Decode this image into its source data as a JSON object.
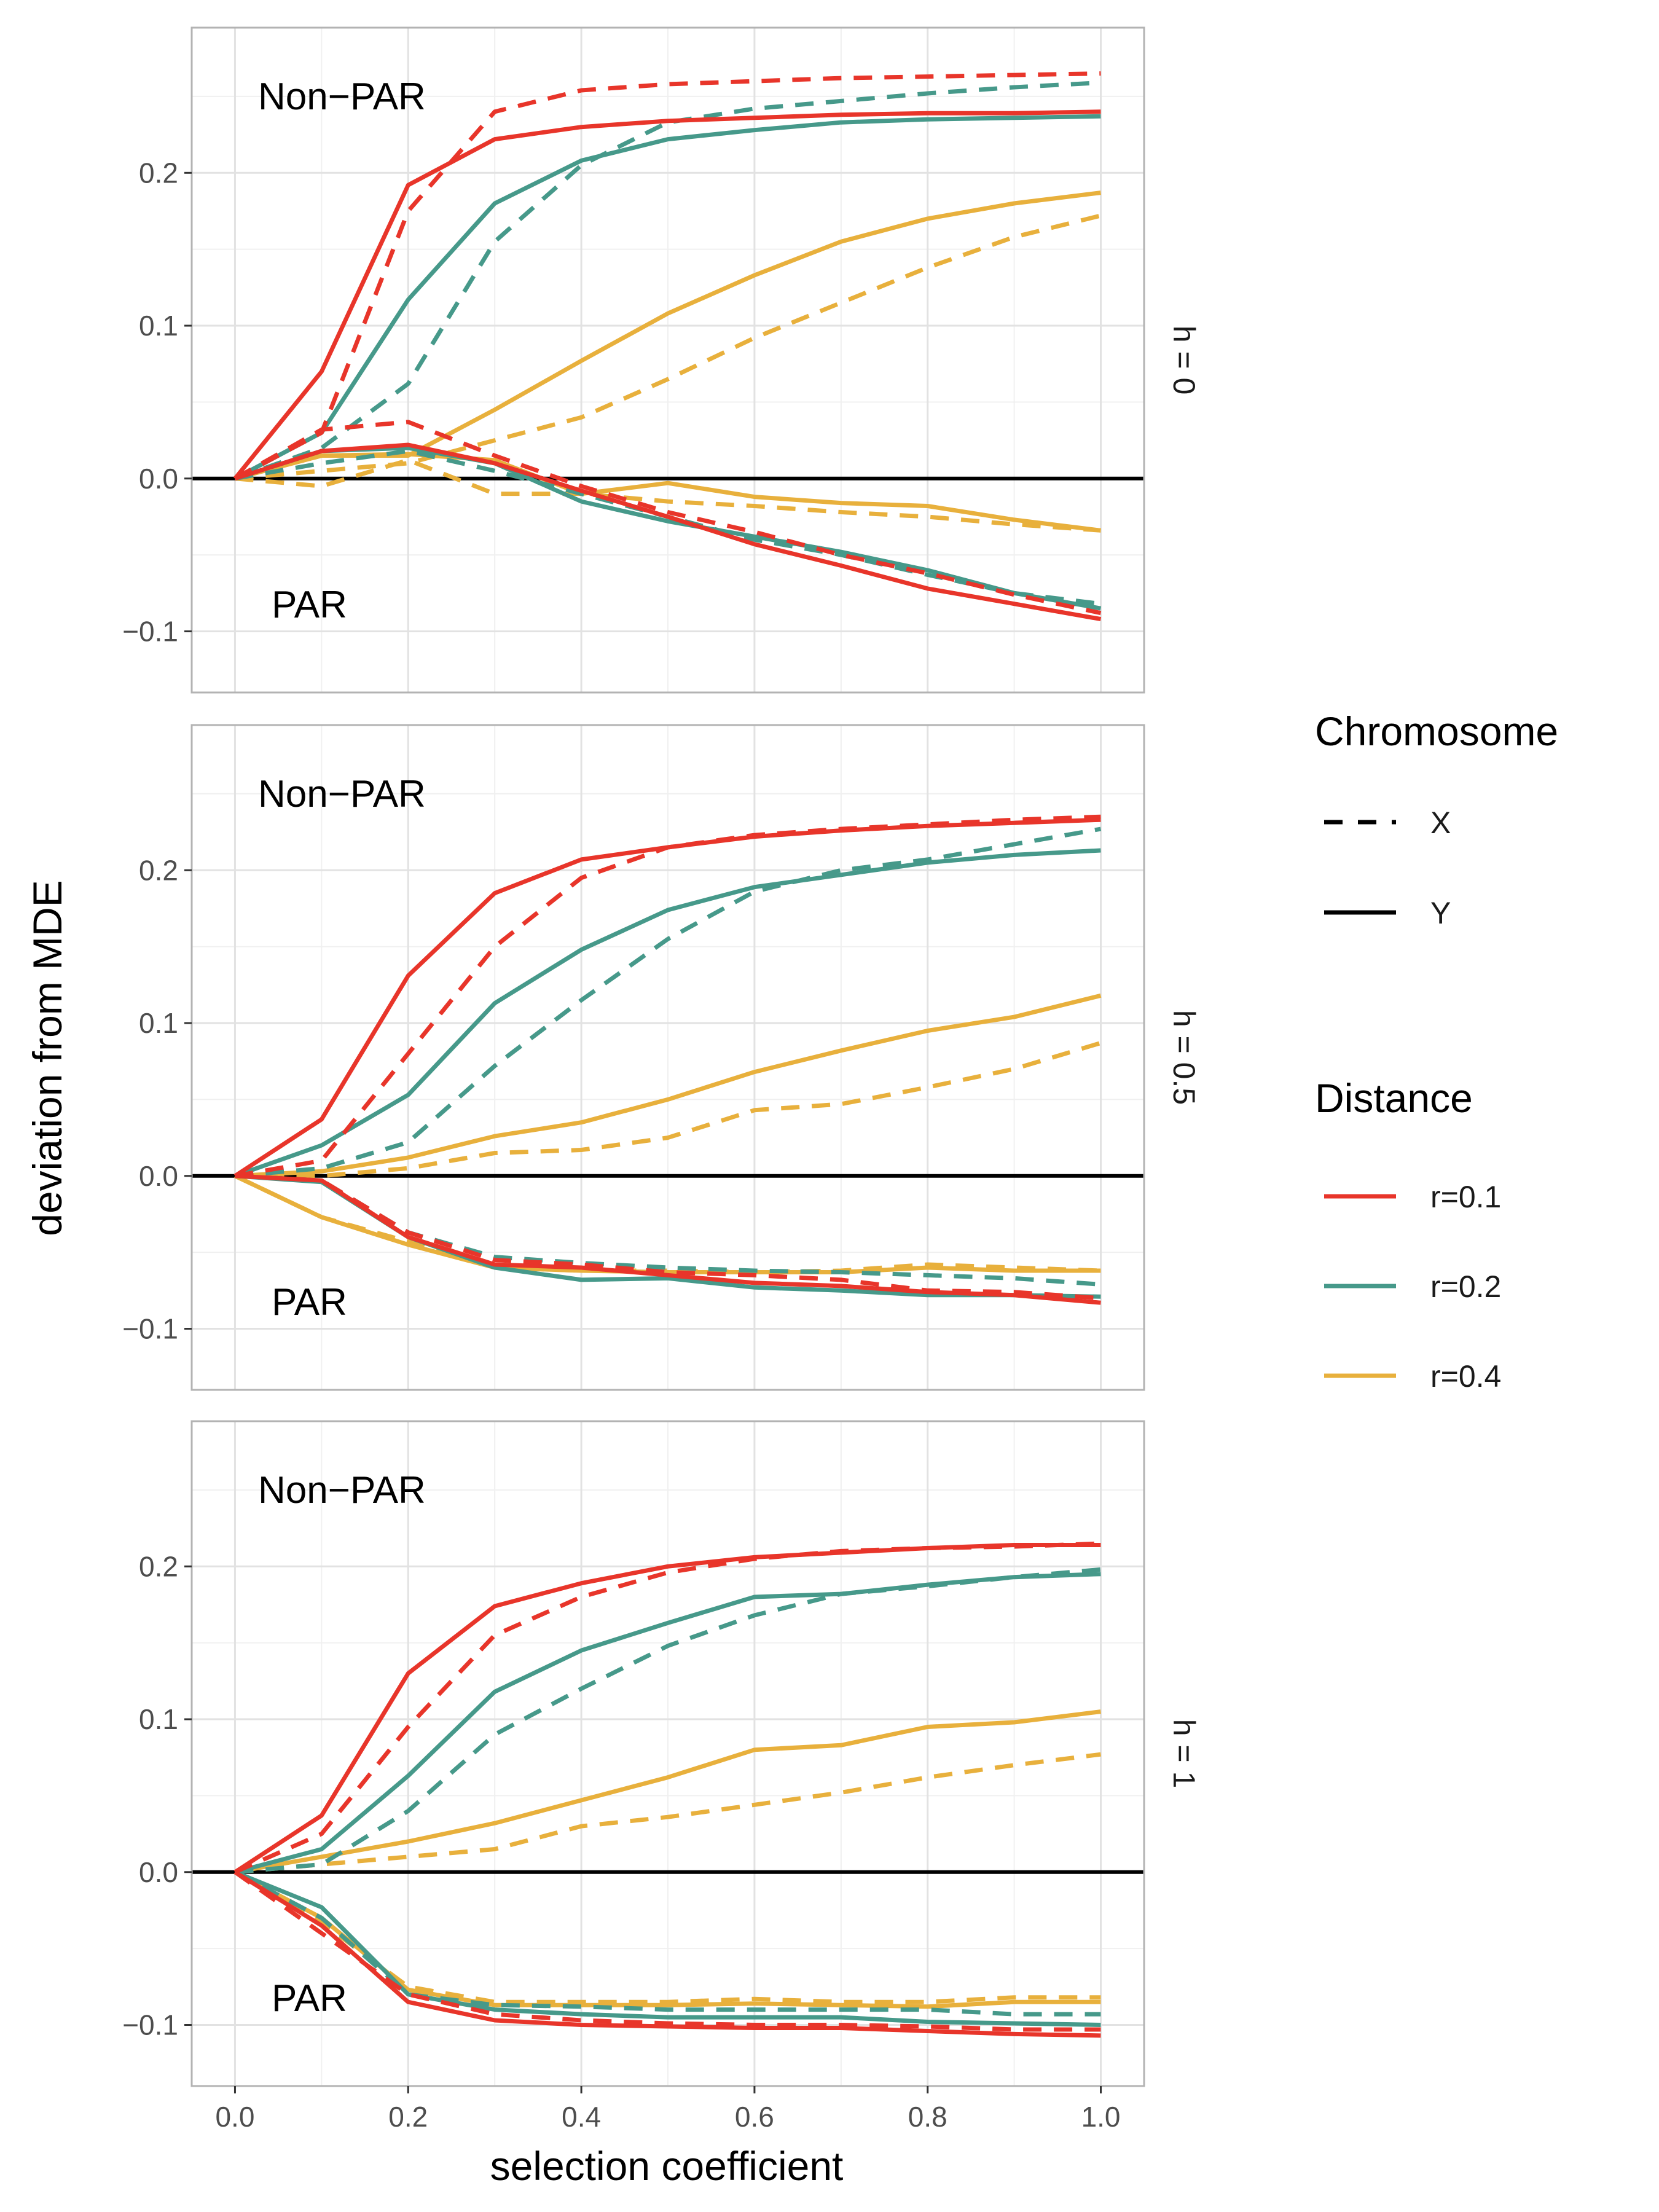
{
  "chart_data": {
    "type": "line",
    "xlabel": "selection coefficient",
    "ylabel": "deviation from MDE",
    "xlim": [
      -0.05,
      1.05
    ],
    "ylim": [
      -0.14,
      0.295
    ],
    "x_ticks": [
      "0.0",
      "0.2",
      "0.4",
      "0.6",
      "0.8",
      "1.0"
    ],
    "y_ticks": [
      "−0.1",
      "0.0",
      "0.1",
      "0.2"
    ],
    "reference_line_y": 0,
    "grid": true,
    "legend_position": "right",
    "legend": {
      "chromosome_title": "Chromosome",
      "chromosome_items": [
        {
          "label": "X",
          "linetype": "dashed"
        },
        {
          "label": "Y",
          "linetype": "solid"
        }
      ],
      "distance_title": "Distance",
      "distance_items": [
        {
          "label": "r=0.1",
          "color": "#E8352A"
        },
        {
          "label": "r=0.2",
          "color": "#46998A"
        },
        {
          "label": "r=0.4",
          "color": "#E8B03C"
        }
      ]
    },
    "x": [
      0.0,
      0.1,
      0.2,
      0.3,
      0.4,
      0.5,
      0.6,
      0.7,
      0.8,
      0.9,
      1.0
    ],
    "panels": [
      {
        "strip": "h = 0",
        "region_top": "Non−PAR",
        "region_bottom": "PAR",
        "series": [
          {
            "region": "Non-PAR",
            "chromosome": "Y",
            "distance": "r=0.1",
            "values": [
              0,
              0.07,
              0.192,
              0.222,
              0.23,
              0.234,
              0.236,
              0.238,
              0.239,
              0.239,
              0.24
            ]
          },
          {
            "region": "Non-PAR",
            "chromosome": "X",
            "distance": "r=0.1",
            "values": [
              0,
              0.03,
              0.175,
              0.24,
              0.254,
              0.258,
              0.26,
              0.262,
              0.263,
              0.264,
              0.265
            ]
          },
          {
            "region": "Non-PAR",
            "chromosome": "Y",
            "distance": "r=0.2",
            "values": [
              0,
              0.03,
              0.117,
              0.18,
              0.208,
              0.222,
              0.228,
              0.233,
              0.235,
              0.236,
              0.237
            ]
          },
          {
            "region": "Non-PAR",
            "chromosome": "X",
            "distance": "r=0.2",
            "values": [
              0,
              0.02,
              0.062,
              0.155,
              0.205,
              0.233,
              0.242,
              0.247,
              0.252,
              0.256,
              0.259
            ]
          },
          {
            "region": "Non-PAR",
            "chromosome": "Y",
            "distance": "r=0.4",
            "values": [
              0,
              0.015,
              0.015,
              0.045,
              0.077,
              0.108,
              0.133,
              0.155,
              0.17,
              0.18,
              0.187
            ]
          },
          {
            "region": "Non-PAR",
            "chromosome": "X",
            "distance": "r=0.4",
            "values": [
              0,
              0.005,
              0.01,
              0.025,
              0.04,
              0.065,
              0.092,
              0.115,
              0.138,
              0.158,
              0.172
            ]
          },
          {
            "region": "PAR",
            "chromosome": "Y",
            "distance": "r=0.1",
            "values": [
              0,
              0.018,
              0.022,
              0.01,
              -0.008,
              -0.025,
              -0.043,
              -0.057,
              -0.072,
              -0.082,
              -0.092
            ]
          },
          {
            "region": "PAR",
            "chromosome": "X",
            "distance": "r=0.1",
            "values": [
              0,
              0.032,
              0.037,
              0.015,
              -0.005,
              -0.022,
              -0.035,
              -0.05,
              -0.062,
              -0.076,
              -0.088
            ]
          },
          {
            "region": "PAR",
            "chromosome": "Y",
            "distance": "r=0.2",
            "values": [
              0,
              0.018,
              0.02,
              0.01,
              -0.015,
              -0.028,
              -0.038,
              -0.048,
              -0.06,
              -0.075,
              -0.085
            ]
          },
          {
            "region": "PAR",
            "chromosome": "X",
            "distance": "r=0.2",
            "values": [
              0,
              0.01,
              0.018,
              0.005,
              -0.01,
              -0.025,
              -0.04,
              -0.05,
              -0.063,
              -0.075,
              -0.082
            ]
          },
          {
            "region": "PAR",
            "chromosome": "Y",
            "distance": "r=0.4",
            "values": [
              0,
              0.015,
              0.016,
              0.012,
              -0.01,
              -0.003,
              -0.012,
              -0.016,
              -0.018,
              -0.027,
              -0.034
            ]
          },
          {
            "region": "PAR",
            "chromosome": "X",
            "distance": "r=0.4",
            "values": [
              0,
              -0.005,
              0.012,
              -0.01,
              -0.01,
              -0.015,
              -0.018,
              -0.022,
              -0.025,
              -0.03,
              -0.034
            ]
          }
        ]
      },
      {
        "strip": "h = 0.5",
        "region_top": "Non−PAR",
        "region_bottom": "PAR",
        "series": [
          {
            "region": "Non-PAR",
            "chromosome": "Y",
            "distance": "r=0.1",
            "values": [
              0,
              0.037,
              0.131,
              0.185,
              0.207,
              0.215,
              0.222,
              0.226,
              0.229,
              0.231,
              0.233
            ]
          },
          {
            "region": "Non-PAR",
            "chromosome": "X",
            "distance": "r=0.1",
            "values": [
              0,
              0.01,
              0.08,
              0.15,
              0.195,
              0.215,
              0.223,
              0.227,
              0.23,
              0.233,
              0.235
            ]
          },
          {
            "region": "Non-PAR",
            "chromosome": "Y",
            "distance": "r=0.2",
            "values": [
              0,
              0.02,
              0.053,
              0.113,
              0.148,
              0.174,
              0.189,
              0.197,
              0.205,
              0.21,
              0.213
            ]
          },
          {
            "region": "Non-PAR",
            "chromosome": "X",
            "distance": "r=0.2",
            "values": [
              0,
              0.005,
              0.022,
              0.072,
              0.115,
              0.155,
              0.186,
              0.2,
              0.207,
              0.217,
              0.227
            ]
          },
          {
            "region": "Non-PAR",
            "chromosome": "Y",
            "distance": "r=0.4",
            "values": [
              0,
              0.003,
              0.012,
              0.026,
              0.035,
              0.05,
              0.068,
              0.082,
              0.095,
              0.104,
              0.118
            ]
          },
          {
            "region": "Non-PAR",
            "chromosome": "X",
            "distance": "r=0.4",
            "values": [
              0,
              0.0,
              0.005,
              0.015,
              0.017,
              0.025,
              0.043,
              0.047,
              0.058,
              0.07,
              0.087
            ]
          },
          {
            "region": "PAR",
            "chromosome": "Y",
            "distance": "r=0.1",
            "values": [
              0,
              -0.003,
              -0.04,
              -0.058,
              -0.06,
              -0.065,
              -0.07,
              -0.072,
              -0.076,
              -0.078,
              -0.083
            ]
          },
          {
            "region": "PAR",
            "chromosome": "X",
            "distance": "r=0.1",
            "values": [
              0,
              -0.003,
              -0.037,
              -0.055,
              -0.058,
              -0.063,
              -0.065,
              -0.068,
              -0.075,
              -0.076,
              -0.08
            ]
          },
          {
            "region": "PAR",
            "chromosome": "Y",
            "distance": "r=0.2",
            "values": [
              0,
              -0.004,
              -0.04,
              -0.06,
              -0.068,
              -0.067,
              -0.073,
              -0.075,
              -0.078,
              -0.078,
              -0.079
            ]
          },
          {
            "region": "PAR",
            "chromosome": "X",
            "distance": "r=0.2",
            "values": [
              0,
              -0.003,
              -0.037,
              -0.053,
              -0.057,
              -0.06,
              -0.062,
              -0.063,
              -0.065,
              -0.067,
              -0.071
            ]
          },
          {
            "region": "PAR",
            "chromosome": "Y",
            "distance": "r=0.4",
            "values": [
              0,
              -0.027,
              -0.045,
              -0.06,
              -0.062,
              -0.063,
              -0.063,
              -0.063,
              -0.06,
              -0.062,
              -0.062
            ]
          },
          {
            "region": "PAR",
            "chromosome": "X",
            "distance": "r=0.4",
            "values": [
              0,
              -0.027,
              -0.043,
              -0.06,
              -0.062,
              -0.062,
              -0.063,
              -0.062,
              -0.058,
              -0.06,
              -0.062
            ]
          }
        ]
      },
      {
        "strip": "h = 1",
        "region_top": "Non−PAR",
        "region_bottom": "PAR",
        "series": [
          {
            "region": "Non-PAR",
            "chromosome": "Y",
            "distance": "r=0.1",
            "values": [
              0,
              0.037,
              0.13,
              0.174,
              0.189,
              0.2,
              0.206,
              0.209,
              0.212,
              0.214,
              0.214
            ]
          },
          {
            "region": "Non-PAR",
            "chromosome": "X",
            "distance": "r=0.1",
            "values": [
              0,
              0.025,
              0.095,
              0.155,
              0.18,
              0.196,
              0.205,
              0.21,
              0.212,
              0.213,
              0.215
            ]
          },
          {
            "region": "Non-PAR",
            "chromosome": "Y",
            "distance": "r=0.2",
            "values": [
              0,
              0.015,
              0.063,
              0.118,
              0.145,
              0.163,
              0.18,
              0.182,
              0.188,
              0.193,
              0.195
            ]
          },
          {
            "region": "Non-PAR",
            "chromosome": "X",
            "distance": "r=0.2",
            "values": [
              0,
              0.005,
              0.04,
              0.09,
              0.12,
              0.148,
              0.168,
              0.182,
              0.187,
              0.193,
              0.198
            ]
          },
          {
            "region": "Non-PAR",
            "chromosome": "Y",
            "distance": "r=0.4",
            "values": [
              0,
              0.01,
              0.02,
              0.032,
              0.047,
              0.062,
              0.08,
              0.083,
              0.095,
              0.098,
              0.105
            ]
          },
          {
            "region": "Non-PAR",
            "chromosome": "X",
            "distance": "r=0.4",
            "values": [
              0,
              0.005,
              0.01,
              0.015,
              0.03,
              0.036,
              0.044,
              0.052,
              0.062,
              0.07,
              0.077
            ]
          },
          {
            "region": "PAR",
            "chromosome": "Y",
            "distance": "r=0.1",
            "values": [
              0,
              -0.035,
              -0.085,
              -0.097,
              -0.1,
              -0.101,
              -0.102,
              -0.102,
              -0.104,
              -0.106,
              -0.107
            ]
          },
          {
            "region": "PAR",
            "chromosome": "X",
            "distance": "r=0.1",
            "values": [
              0,
              -0.04,
              -0.08,
              -0.093,
              -0.097,
              -0.099,
              -0.1,
              -0.1,
              -0.101,
              -0.103,
              -0.103
            ]
          },
          {
            "region": "PAR",
            "chromosome": "Y",
            "distance": "r=0.2",
            "values": [
              0,
              -0.023,
              -0.08,
              -0.09,
              -0.093,
              -0.095,
              -0.095,
              -0.095,
              -0.098,
              -0.099,
              -0.1
            ]
          },
          {
            "region": "PAR",
            "chromosome": "X",
            "distance": "r=0.2",
            "values": [
              0,
              -0.03,
              -0.08,
              -0.087,
              -0.088,
              -0.09,
              -0.09,
              -0.09,
              -0.09,
              -0.093,
              -0.093
            ]
          },
          {
            "region": "PAR",
            "chromosome": "Y",
            "distance": "r=0.4",
            "values": [
              0,
              -0.03,
              -0.077,
              -0.087,
              -0.087,
              -0.087,
              -0.086,
              -0.087,
              -0.088,
              -0.085,
              -0.085
            ]
          },
          {
            "region": "PAR",
            "chromosome": "X",
            "distance": "r=0.4",
            "values": [
              0,
              -0.033,
              -0.075,
              -0.085,
              -0.085,
              -0.085,
              -0.083,
              -0.085,
              -0.085,
              -0.082,
              -0.082
            ]
          }
        ]
      }
    ]
  }
}
